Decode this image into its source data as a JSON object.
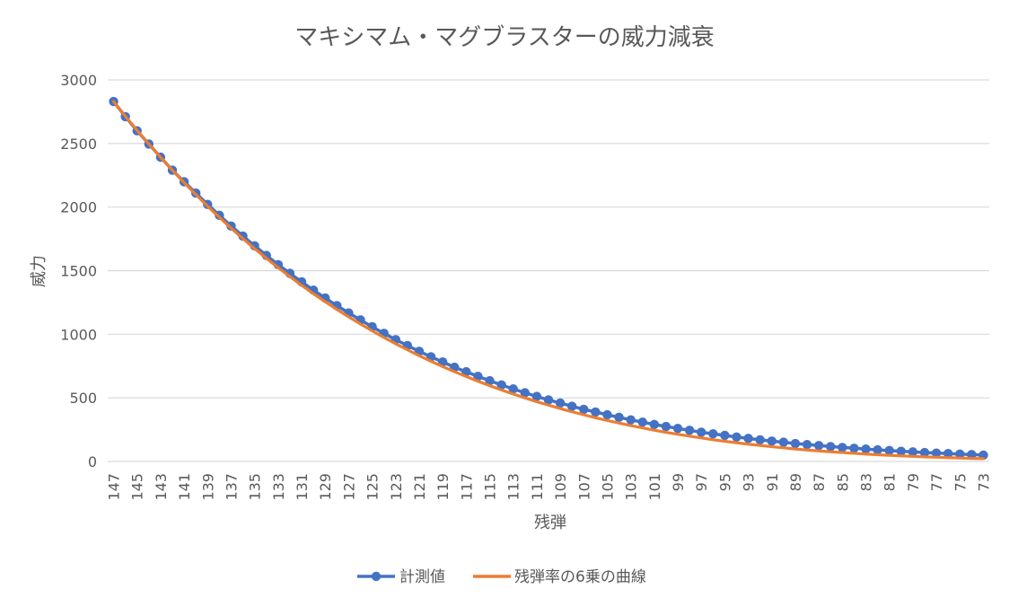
{
  "chart_data": {
    "type": "line",
    "title": "マキシマム・マグブラスターの威力減衰",
    "xlabel": "残弾",
    "ylabel": "威力",
    "ylim": [
      0,
      3000
    ],
    "yticks": [
      0,
      500,
      1000,
      1500,
      2000,
      2500,
      3000
    ],
    "x": [
      147,
      146,
      145,
      144,
      143,
      142,
      141,
      140,
      139,
      138,
      137,
      136,
      135,
      134,
      133,
      132,
      131,
      130,
      129,
      128,
      127,
      126,
      125,
      124,
      123,
      122,
      121,
      120,
      119,
      118,
      117,
      116,
      115,
      114,
      113,
      112,
      111,
      110,
      109,
      108,
      107,
      106,
      105,
      104,
      103,
      102,
      101,
      100,
      99,
      98,
      97,
      96,
      95,
      94,
      93,
      92,
      91,
      90,
      89,
      88,
      87,
      86,
      85,
      84,
      83,
      82,
      81,
      80,
      79,
      78,
      77,
      76,
      75,
      74,
      73
    ],
    "xticks_shown": [
      147,
      145,
      143,
      141,
      139,
      137,
      135,
      133,
      131,
      129,
      127,
      125,
      123,
      121,
      119,
      117,
      115,
      113,
      111,
      109,
      107,
      105,
      103,
      101,
      99,
      97,
      95,
      93,
      91,
      89,
      87,
      85,
      83,
      81,
      79,
      77,
      75,
      73
    ],
    "grid": true,
    "legend_position": "bottom",
    "series": [
      {
        "name": "計測値",
        "color": "#4472C4",
        "marker": "circle",
        "values": [
          2830,
          2711,
          2600,
          2496,
          2392,
          2290,
          2199,
          2110,
          2021,
          1935,
          1851,
          1772,
          1695,
          1620,
          1547,
          1479,
          1412,
          1347,
          1285,
          1225,
          1168,
          1113,
          1059,
          1007,
          958,
          911,
          866,
          823,
          782,
          741,
          705,
          669,
          635,
          601,
          570,
          540,
          511,
          484,
          459,
          434,
          410,
          389,
          367,
          347,
          327,
          309,
          291,
          275,
          260,
          245,
          230,
          217,
          205,
          192,
          181,
          170,
          160,
          151,
          141,
          133,
          125,
          117,
          110,
          104,
          97,
          91,
          86,
          80,
          75,
          70,
          66,
          62,
          58,
          54,
          50
        ]
      },
      {
        "name": "残弾率の6乗の曲線",
        "color": "#ED7D31",
        "marker": "none",
        "values": [
          2830,
          2715,
          2603,
          2495,
          2391,
          2290,
          2192,
          2098,
          2007,
          1919,
          1834,
          1752,
          1673,
          1597,
          1524,
          1453,
          1385,
          1319,
          1256,
          1195,
          1137,
          1081,
          1027,
          975,
          925,
          878,
          832,
          788,
          746,
          706,
          668,
          631,
          596,
          562,
          530,
          500,
          470,
          443,
          416,
          391,
          367,
          344,
          322,
          302,
          282,
          264,
          246,
          229,
          214,
          199,
          185,
          171,
          159,
          147,
          136,
          126,
          116,
          107,
          98,
          90,
          83,
          76,
          70,
          64,
          58,
          53,
          48,
          44,
          40,
          36,
          33,
          30,
          27,
          24,
          22
        ]
      }
    ]
  }
}
